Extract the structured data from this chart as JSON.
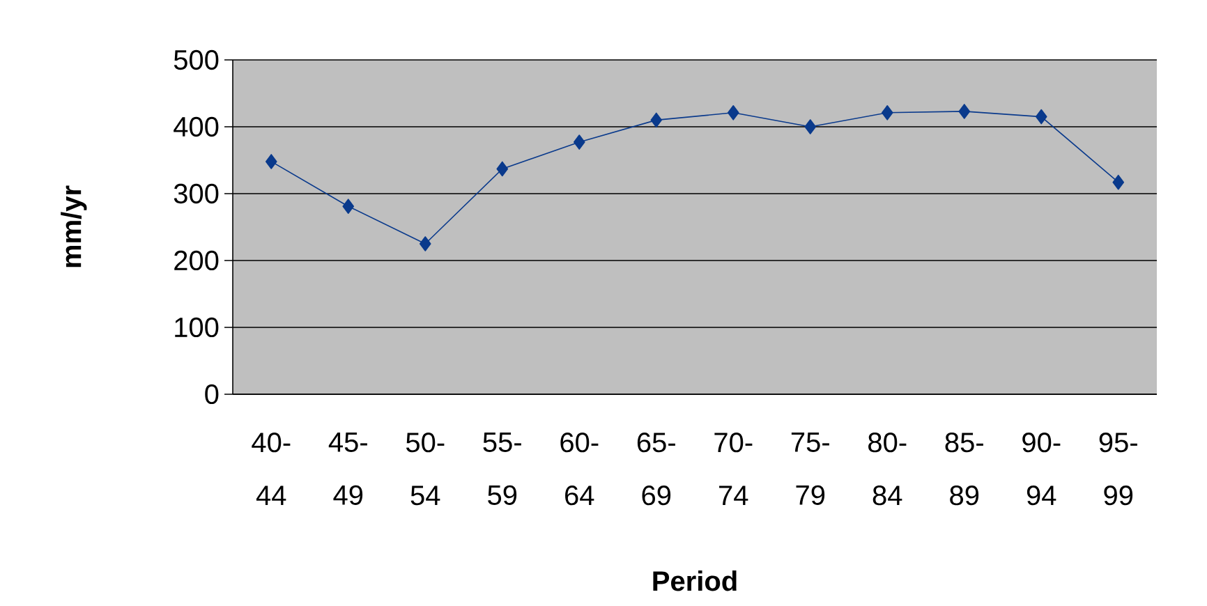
{
  "chart_data": {
    "type": "line",
    "xlabel": "Period",
    "ylabel": "mm/yr",
    "categories": [
      "40-44",
      "45-49",
      "50-54",
      "55-59",
      "60-64",
      "65-69",
      "70-74",
      "75-79",
      "80-84",
      "85-89",
      "90-94",
      "95-99"
    ],
    "series": [
      {
        "color": "#0a3a8c",
        "values": [
          348,
          281,
          225,
          337,
          377,
          410,
          421,
          400,
          421,
          423,
          415,
          317
        ]
      }
    ],
    "ylim": [
      0,
      500
    ],
    "yticks": [
      0,
      100,
      200,
      300,
      400,
      500
    ],
    "grid": "y",
    "marker": "diamond",
    "line_style": "solid"
  }
}
